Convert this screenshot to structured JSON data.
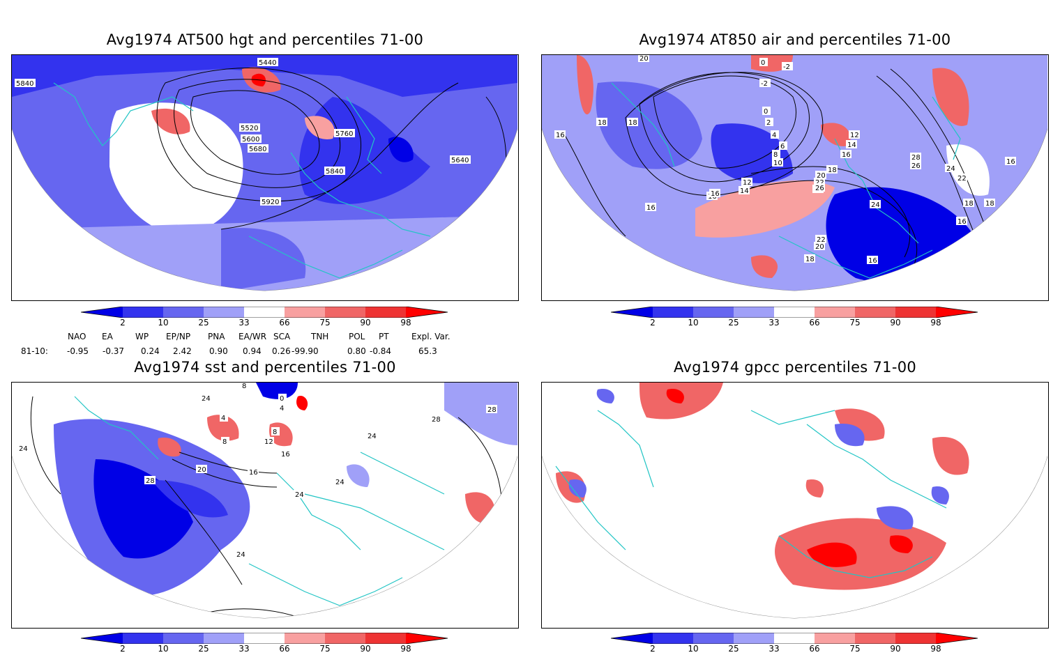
{
  "panels": [
    {
      "id": "p1",
      "title": "Avg1974 AT500 hgt and percentiles 71-00",
      "contour_labels": [
        "5440",
        "5840",
        "5520",
        "5600",
        "5680",
        "5760",
        "5840",
        "5640",
        "5920"
      ]
    },
    {
      "id": "p2",
      "title": "Avg1974 AT850 air and percentiles 71-00",
      "contour_labels": [
        "20",
        "0",
        "-2",
        "-2",
        "16",
        "18",
        "18",
        "0",
        "2",
        "4",
        "6",
        "8",
        "10",
        "12",
        "14",
        "16",
        "12",
        "14",
        "16",
        "18",
        "20",
        "22",
        "24",
        "26",
        "28",
        "26",
        "24",
        "22",
        "18",
        "16",
        "16",
        "24",
        "22",
        "20",
        "18",
        "16",
        "16",
        "18",
        "16"
      ]
    },
    {
      "id": "p3",
      "title": "Avg1974 sst and percentiles 71-00",
      "contour_labels": [
        "8",
        "24",
        "0",
        "4",
        "4",
        "8",
        "8",
        "12",
        "16",
        "20",
        "16",
        "28",
        "24",
        "24",
        "24",
        "28",
        "24",
        "28",
        "24"
      ]
    },
    {
      "id": "p4",
      "title": "Avg1974 gpcc percentiles 71-00",
      "contour_labels": []
    }
  ],
  "colorbar": {
    "labels": [
      "2",
      "10",
      "25",
      "33",
      "66",
      "75",
      "90",
      "98"
    ],
    "colors": {
      "c2": "#0000e6",
      "c10": "#3333ee",
      "c25": "#6666f0",
      "c33": "#a0a0f8",
      "w": "#ffffff",
      "c66": "#f8a0a0",
      "c75": "#f06666",
      "c90": "#ee3333",
      "c98": "#ff0000",
      "coast": "#22c5c5"
    }
  },
  "indices": {
    "headers": [
      "NAO",
      "EA",
      "WP",
      "EP/NP",
      "PNA",
      "EA/WR",
      "SCA",
      "TNH",
      "POL",
      "PT",
      "Expl. Var."
    ],
    "row_label": "81-10:",
    "values": [
      "-0.95",
      "-0.37",
      "0.24",
      "2.42",
      "0.90",
      "0.94",
      "0.26",
      "-99.90",
      "0.80",
      "-0.84",
      "65.3"
    ]
  }
}
